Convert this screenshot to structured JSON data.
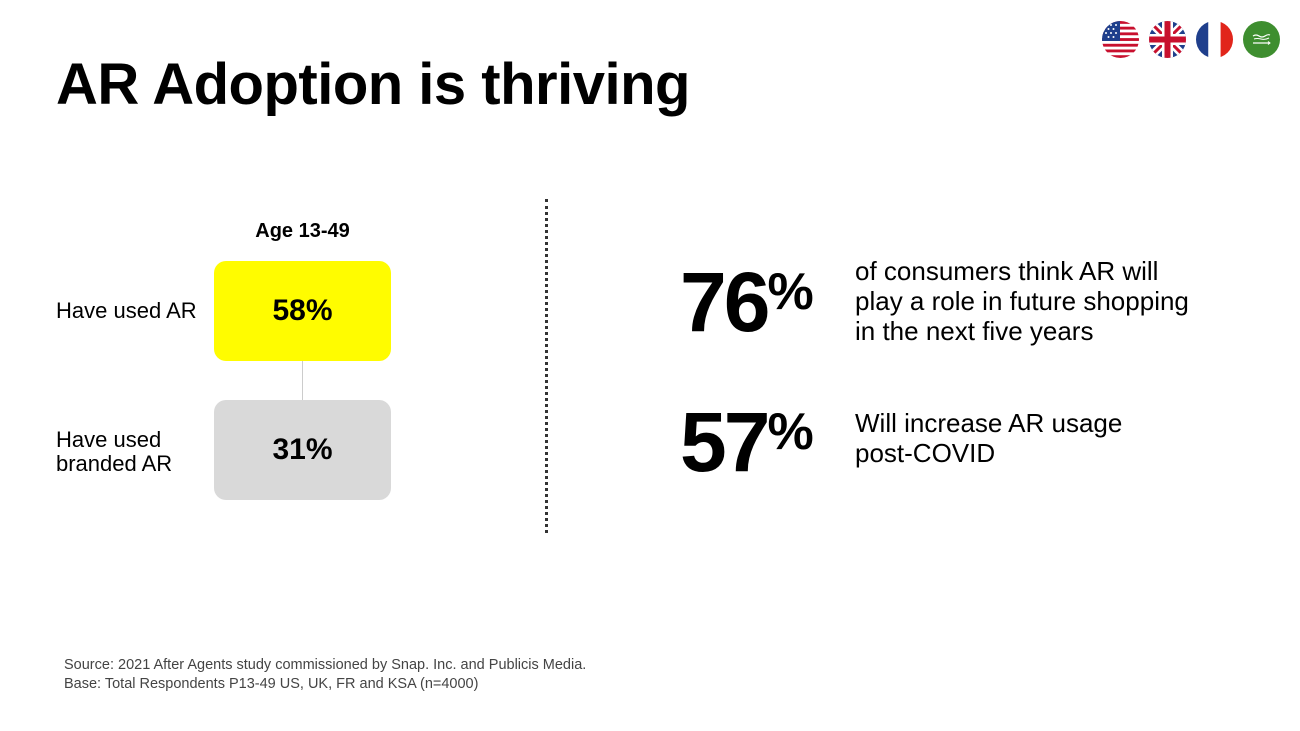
{
  "title": "AR Adoption is thriving",
  "flags": [
    {
      "name": "us-flag-icon"
    },
    {
      "name": "uk-flag-icon"
    },
    {
      "name": "france-flag-icon"
    },
    {
      "name": "saudi-arabia-flag-icon"
    }
  ],
  "left_panel": {
    "age_label": "Age 13-49",
    "rows": [
      {
        "label": "Have used AR",
        "value": "58%",
        "color": "#FFFC00"
      },
      {
        "label_lines": [
          "Have used",
          "branded AR"
        ],
        "value": "31%",
        "color": "#D9D9D9"
      }
    ]
  },
  "stats": [
    {
      "number": "76",
      "unit": "%",
      "lines": [
        "of consumers think AR will",
        "play a role in future shopping",
        "in the next five years"
      ]
    },
    {
      "number": "57",
      "unit": "%",
      "lines": [
        "Will increase AR usage",
        "post-COVID"
      ]
    }
  ],
  "footnote": {
    "source": "Source: 2021 After Agents study commissioned by Snap. Inc. and Publicis Media.",
    "base": "Base: Total Respondents P13-49 US, UK, FR and KSA (n=4000)"
  }
}
